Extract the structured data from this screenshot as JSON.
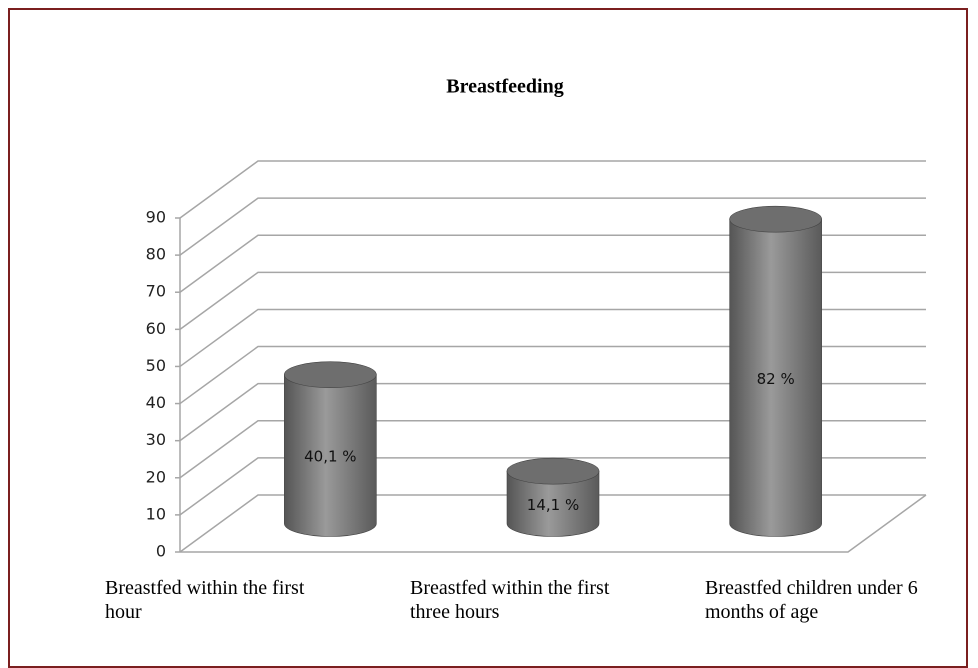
{
  "chart_data": {
    "type": "bar",
    "title": "Breastfeeding",
    "categories": [
      "Breastfed within the first hour",
      "Breastfed within the first three hours",
      "Breastfed children under 6 months of age"
    ],
    "values": [
      40.1,
      14.1,
      82
    ],
    "value_labels": [
      "40,1 %",
      "14,1 %",
      "82 %"
    ],
    "color": "#7f7f7f",
    "ylim": [
      0,
      90
    ],
    "yticks": [
      0,
      10,
      20,
      30,
      40,
      50,
      60,
      70,
      80,
      90
    ],
    "grid": true
  }
}
